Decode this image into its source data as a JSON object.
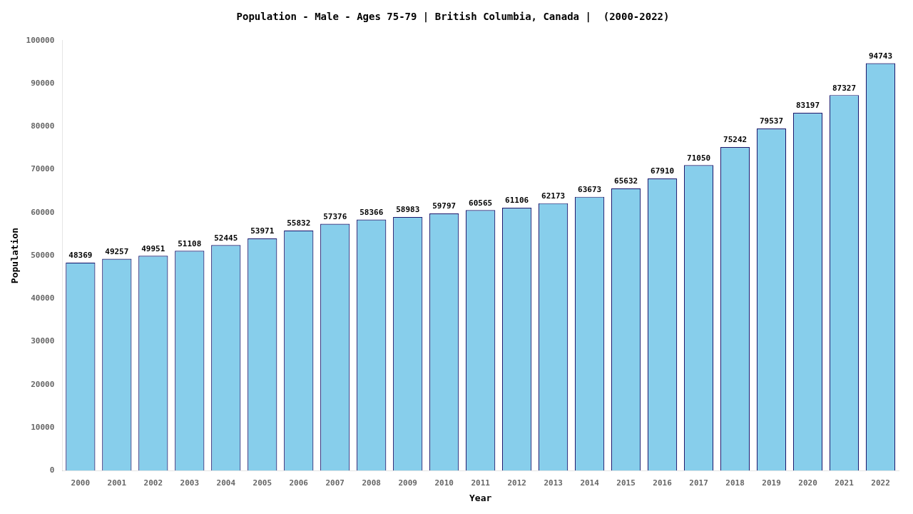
{
  "chart_data": {
    "type": "bar",
    "title": "Population - Male - Ages 75-79 | British Columbia, Canada |  (2000-2022)",
    "x_label": "Year",
    "y_label": "Population",
    "categories": [
      "2000",
      "2001",
      "2002",
      "2003",
      "2004",
      "2005",
      "2006",
      "2007",
      "2008",
      "2009",
      "2010",
      "2011",
      "2012",
      "2013",
      "2014",
      "2015",
      "2016",
      "2017",
      "2018",
      "2019",
      "2020",
      "2021",
      "2022"
    ],
    "values": [
      48369,
      49257,
      49951,
      51108,
      52445,
      53971,
      55832,
      57376,
      58366,
      58983,
      59797,
      60565,
      61106,
      62173,
      63673,
      65632,
      67910,
      71050,
      75242,
      79537,
      83197,
      87327,
      94743
    ],
    "color": "#87CEEB",
    "ylim": [
      0,
      100000
    ],
    "yticks": [
      0,
      10000,
      20000,
      30000,
      40000,
      50000,
      60000,
      70000,
      80000,
      90000,
      100000
    ],
    "grid": false,
    "data_labels": true
  }
}
